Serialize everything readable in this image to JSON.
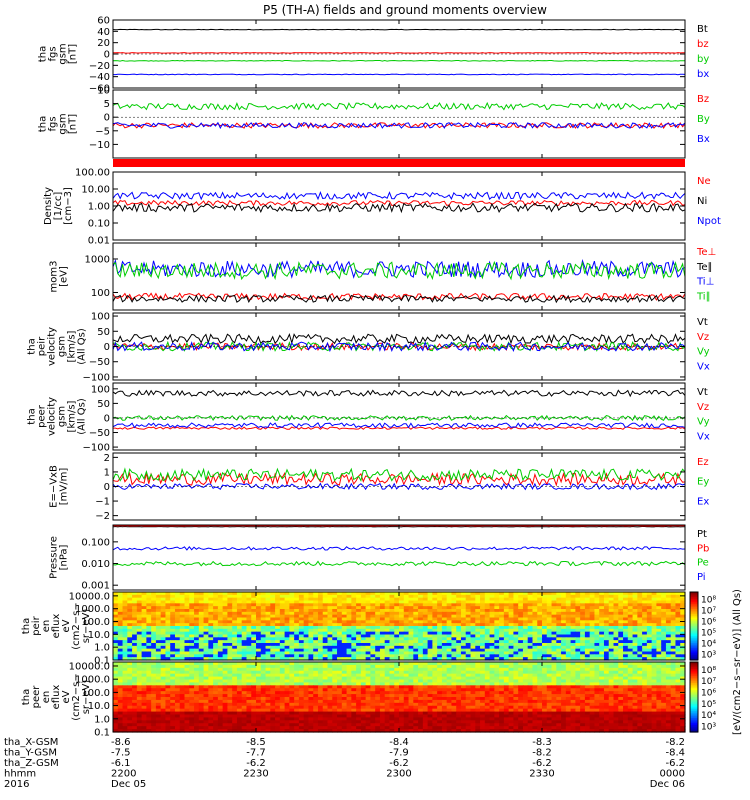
{
  "chart_data": {
    "type": "line",
    "title": "P5 (TH-A) fields and ground moments overview",
    "x_ticks": [
      "2200",
      "2230",
      "2300",
      "2330",
      "0000"
    ],
    "x_range": [
      0,
      120
    ],
    "ephemeris": {
      "rows": [
        {
          "label": "tha_X-GSM",
          "values": [
            "-8.6",
            "-8.5",
            "-8.4",
            "-8.3",
            "-8.2"
          ]
        },
        {
          "label": "tha_Y-GSM",
          "values": [
            "-7.5",
            "-7.7",
            "-7.9",
            "-8.2",
            "-8.4"
          ]
        },
        {
          "label": "tha_Z-GSM",
          "values": [
            "-6.1",
            "-6.2",
            "-6.2",
            "-6.2",
            "-6.2"
          ]
        },
        {
          "label": "hhmm",
          "values": [
            "2200",
            "2230",
            "2300",
            "2330",
            "0000"
          ]
        },
        {
          "label": "2016",
          "values": [
            "Dec 05",
            "",
            "",
            "",
            "Dec 06"
          ]
        }
      ]
    },
    "panels": [
      {
        "id": "fgs-gsm-1",
        "ylabel": [
          "tha",
          "fgs",
          "gsm",
          "[nT]"
        ],
        "yscale": "linear",
        "ylim": [
          -60,
          60
        ],
        "ticks": [
          "60",
          "40",
          "20",
          "0",
          "−20",
          "−40",
          "−60"
        ],
        "tick_values": [
          60,
          40,
          20,
          0,
          -20,
          -40,
          -60
        ],
        "series": [
          {
            "name": "Bt",
            "color": "#000000",
            "base": 43,
            "noise": 0.5
          },
          {
            "name": "bz",
            "color": "#ff0000",
            "base": 2,
            "noise": 0.5
          },
          {
            "name": "by",
            "color": "#00cc00",
            "base": -12,
            "noise": 0.6
          },
          {
            "name": "bx",
            "color": "#0000ff",
            "base": -36,
            "noise": 0.6
          }
        ]
      },
      {
        "id": "fgs-gsm-2",
        "ylabel": [
          "tha",
          "fgs",
          "gsm",
          "[nT]"
        ],
        "yscale": "linear",
        "ylim": [
          -15,
          10
        ],
        "ticks": [
          "10",
          "5",
          "0",
          "−5",
          "−10"
        ],
        "tick_values": [
          10,
          5,
          0,
          -5,
          -10
        ],
        "series": [
          {
            "name": "Bz",
            "color": "#ff0000",
            "base": -3,
            "noise": 1.0
          },
          {
            "name": "By",
            "color": "#00cc00",
            "base": 4,
            "noise": 1.2
          },
          {
            "name": "Bx",
            "color": "#0000ff",
            "base": -3,
            "noise": 1.0
          }
        ]
      },
      {
        "id": "density",
        "ylabel": [
          "Density",
          "[1/cc]",
          "[cm−3]"
        ],
        "yscale": "log",
        "ylim": [
          0.01,
          100
        ],
        "ticks": [
          "100.00",
          "10.00",
          "1.00",
          "0.10",
          "0.01"
        ],
        "tick_values": [
          100,
          10,
          1,
          0.1,
          0.01
        ],
        "series": [
          {
            "name": "Ne",
            "color": "#ff0000",
            "base": 1.5,
            "noise": 0.3
          },
          {
            "name": "Ni",
            "color": "#000000",
            "base": 0.8,
            "noise": 0.5
          },
          {
            "name": "Npot",
            "color": "#0000ff",
            "base": 4,
            "noise": 0.4
          }
        ]
      },
      {
        "id": "temperature",
        "ylabel": [
          "mom3",
          "[eV]"
        ],
        "yscale": "log",
        "ylim": [
          30,
          3000
        ],
        "ticks": [
          "1000",
          "100"
        ],
        "tick_values": [
          1000,
          100
        ],
        "series": [
          {
            "name": "Te⊥",
            "color": "#ff0000",
            "base": 75,
            "noise": 0.2
          },
          {
            "name": "Te∥",
            "color": "#000000",
            "base": 65,
            "noise": 0.2
          },
          {
            "name": "Ti⊥",
            "color": "#0000ff",
            "base": 500,
            "noise": 0.5
          },
          {
            "name": "Ti∥",
            "color": "#00cc00",
            "base": 450,
            "noise": 0.5
          }
        ]
      },
      {
        "id": "peir-velocity",
        "ylabel": [
          "tha",
          "peir",
          "velocity",
          "gsm",
          "[km/s]",
          "(All Qs)"
        ],
        "yscale": "linear",
        "ylim": [
          -110,
          110
        ],
        "ticks": [
          "100",
          "50",
          "0",
          "−50",
          "−100"
        ],
        "tick_values": [
          100,
          50,
          0,
          -50,
          -100
        ],
        "series": [
          {
            "name": "Vt",
            "color": "#000000",
            "base": 25,
            "noise": 15
          },
          {
            "name": "Vz",
            "color": "#ff0000",
            "base": 0,
            "noise": 12
          },
          {
            "name": "Vy",
            "color": "#00cc00",
            "base": 0,
            "noise": 14
          },
          {
            "name": "Vx",
            "color": "#0000ff",
            "base": 0,
            "noise": 14
          }
        ]
      },
      {
        "id": "peer-velocity",
        "ylabel": [
          "tha",
          "peer",
          "velocity",
          "gsm",
          "[km/s]",
          "(All Qs)"
        ],
        "yscale": "linear",
        "ylim": [
          -110,
          120
        ],
        "ticks": [
          "100",
          "50",
          "0",
          "−50",
          "−100"
        ],
        "tick_values": [
          100,
          50,
          0,
          -50,
          -100
        ],
        "series": [
          {
            "name": "Vt",
            "color": "#000000",
            "base": 85,
            "noise": 10
          },
          {
            "name": "Vz",
            "color": "#ff0000",
            "base": -35,
            "noise": 4
          },
          {
            "name": "Vy",
            "color": "#00cc00",
            "base": 0,
            "noise": 8
          },
          {
            "name": "Vx",
            "color": "#0000ff",
            "base": -25,
            "noise": 8
          }
        ]
      },
      {
        "id": "efield",
        "ylabel": [
          "E=−VxB",
          "[mV/m]"
        ],
        "yscale": "linear",
        "ylim": [
          -2.3,
          2.3
        ],
        "ticks": [
          "2",
          "1",
          "0",
          "−1",
          "−2"
        ],
        "tick_values": [
          2,
          1,
          0,
          -1,
          -2
        ],
        "series": [
          {
            "name": "Ez",
            "color": "#ff0000",
            "base": 0.5,
            "noise": 0.4
          },
          {
            "name": "Ey",
            "color": "#00cc00",
            "base": 0.8,
            "noise": 0.4
          },
          {
            "name": "Ex",
            "color": "#0000ff",
            "base": 0,
            "noise": 0.2
          }
        ]
      },
      {
        "id": "pressure",
        "ylabel": [
          "Pressure",
          "[nPa]"
        ],
        "yscale": "log",
        "ylim": [
          0.0006,
          0.6
        ],
        "ticks": [
          "0.100",
          "0.010",
          "0.001"
        ],
        "tick_values": [
          0.1,
          0.01,
          0.001
        ],
        "series": [
          {
            "name": "Pt",
            "color": "#000000",
            "base": 0.5,
            "noise": 0.02
          },
          {
            "name": "Pb",
            "color": "#ff0000",
            "base": 0.55,
            "noise": 0.02
          },
          {
            "name": "Pe",
            "color": "#00cc00",
            "base": 0.01,
            "noise": 0.2
          },
          {
            "name": "Pi",
            "color": "#0000ff",
            "base": 0.05,
            "noise": 0.15
          }
        ]
      },
      {
        "id": "peir-eflux",
        "type": "heatmap",
        "ylabel": [
          "tha",
          "peir",
          "en",
          "eflux",
          "eV",
          "(cm2−s−",
          "sr−eV)"
        ],
        "yscale": "log",
        "ylim": [
          0.1,
          20000
        ],
        "ticks": [
          "10000.0",
          "1000.0",
          "100.0",
          "10.0",
          "1.0",
          "0.1"
        ],
        "tick_values": [
          10000,
          1000,
          100,
          10,
          1,
          0.1
        ],
        "colorbar": {
          "label": "[eV/(cm2−s−sr−eV)] (All Qs)",
          "ticks": [
            "10⁸",
            "10⁷",
            "10⁶",
            "10⁵",
            "10⁴",
            "10³"
          ],
          "tick_values": [
            8,
            7,
            6,
            5,
            4,
            3
          ],
          "range": [
            2.5,
            8.7
          ]
        }
      },
      {
        "id": "peer-eflux",
        "type": "heatmap",
        "ylabel": [
          "tha",
          "peer",
          "en",
          "eflux",
          "eV",
          "(cm2−s−",
          "sr−eV)"
        ],
        "yscale": "log",
        "ylim": [
          0.1,
          20000
        ],
        "ticks": [
          "10000.0",
          "1000.0",
          "100.0",
          "10.0",
          "1.0",
          "0.1"
        ],
        "tick_values": [
          10000,
          1000,
          100,
          10,
          1,
          0.1
        ],
        "colorbar": {
          "label": "[eV/(cm2−s−sr−eV)] (All Qs)",
          "ticks": [
            "10⁸",
            "10⁷",
            "10⁶",
            "10⁵",
            "10⁴",
            "10³"
          ],
          "tick_values": [
            8,
            7,
            6,
            5,
            4,
            3
          ],
          "range": [
            2.5,
            8.7
          ]
        }
      }
    ]
  }
}
